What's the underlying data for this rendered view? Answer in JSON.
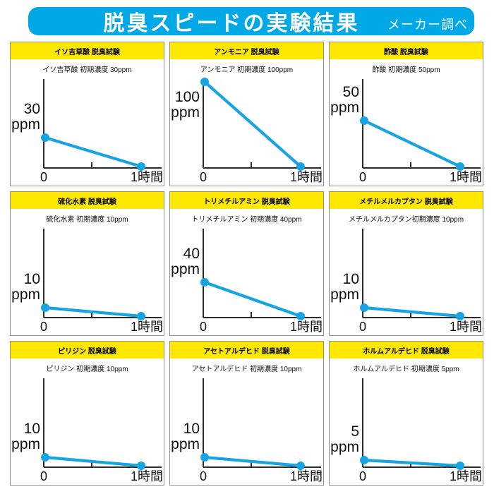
{
  "header": {
    "title": "脱臭スピードの実験結果",
    "note": "メーカー調べ"
  },
  "colors": {
    "header_bg": "#00a9e6",
    "panel_title_bg": "#ffe800",
    "line": "#17a4e3",
    "axis": "#2b2b2b",
    "text": "#111111",
    "panel_border": "#8f8f8f"
  },
  "x_axis": {
    "start_label": "0",
    "end_label": "1時間"
  },
  "chart_data": [
    {
      "type": "line",
      "title": "イソ吉草酸 脱臭試験",
      "subtitle": "イソ吉草酸 初期濃度 30ppm",
      "substance": "イソ吉草酸",
      "initial_ppm": 30,
      "ylabel_value": "30",
      "ylabel_unit": "ppm",
      "x_hours": [
        0,
        1
      ],
      "x_tick_labels": [
        "0",
        "1時間"
      ],
      "values_ppm": [
        30,
        0
      ],
      "start_frac": 0.34
    },
    {
      "type": "line",
      "title": "アンモニア 脱臭試験",
      "subtitle": "アンモニア 初期濃度 100ppm",
      "substance": "アンモニア",
      "initial_ppm": 100,
      "ylabel_value": "100",
      "ylabel_unit": "ppm",
      "x_hours": [
        0,
        1
      ],
      "x_tick_labels": [
        "0",
        "1時間"
      ],
      "values_ppm": [
        100,
        0
      ],
      "start_frac": 0.97
    },
    {
      "type": "line",
      "title": "酢酸 脱臭試験",
      "subtitle": "酢酸 初期濃度 50ppm",
      "substance": "酢酸",
      "initial_ppm": 50,
      "ylabel_value": "50",
      "ylabel_unit": "ppm",
      "x_hours": [
        0,
        1
      ],
      "x_tick_labels": [
        "0",
        "1時間"
      ],
      "values_ppm": [
        50,
        0
      ],
      "start_frac": 0.53
    },
    {
      "type": "line",
      "title": "硫化水素 脱臭試験",
      "subtitle": "硫化水素 初期濃度 10ppm",
      "substance": "硫化水素",
      "initial_ppm": 10,
      "ylabel_value": "10",
      "ylabel_unit": "ppm",
      "x_hours": [
        0,
        1
      ],
      "x_tick_labels": [
        "0",
        "1時間"
      ],
      "values_ppm": [
        10,
        0
      ],
      "start_frac": 0.11
    },
    {
      "type": "line",
      "title": "トリメチルアミン 脱臭試験",
      "subtitle": "トリメチルアミン 初期濃度 40ppm",
      "substance": "トリメチルアミン",
      "initial_ppm": 40,
      "ylabel_value": "40",
      "ylabel_unit": "ppm",
      "x_hours": [
        0,
        1
      ],
      "x_tick_labels": [
        "0",
        "1時間"
      ],
      "values_ppm": [
        40,
        0
      ],
      "start_frac": 0.4
    },
    {
      "type": "line",
      "title": "メチルメルカプタン 脱臭試験",
      "subtitle": "メチルメルカプタン初期濃度 10ppm",
      "substance": "メチルメルカプタン",
      "initial_ppm": 10,
      "ylabel_value": "10",
      "ylabel_unit": "ppm",
      "x_hours": [
        0,
        1
      ],
      "x_tick_labels": [
        "0",
        "1時間"
      ],
      "values_ppm": [
        10,
        0
      ],
      "start_frac": 0.11
    },
    {
      "type": "line",
      "title": "ピリジン 脱臭試験",
      "subtitle": "ピリジン 初期濃度 10ppm",
      "substance": "ピリジン",
      "initial_ppm": 10,
      "ylabel_value": "10",
      "ylabel_unit": "ppm",
      "x_hours": [
        0,
        1
      ],
      "x_tick_labels": [
        "0",
        "1時間"
      ],
      "values_ppm": [
        10,
        0
      ],
      "start_frac": 0.11
    },
    {
      "type": "line",
      "title": "アセトアルデヒド 脱臭試験",
      "subtitle": "アセトアルデヒド 初期濃度 10ppm",
      "substance": "アセトアルデヒド",
      "initial_ppm": 10,
      "ylabel_value": "10",
      "ylabel_unit": "ppm",
      "x_hours": [
        0,
        1
      ],
      "x_tick_labels": [
        "0",
        "1時間"
      ],
      "values_ppm": [
        10,
        0
      ],
      "start_frac": 0.11
    },
    {
      "type": "line",
      "title": "ホルムアルデヒド 脱臭試験",
      "subtitle": "ホルムアルデヒド 初期濃度 5ppm",
      "substance": "ホルムアルデヒド",
      "initial_ppm": 5,
      "ylabel_value": "5",
      "ylabel_unit": "ppm",
      "x_hours": [
        0,
        1
      ],
      "x_tick_labels": [
        "0",
        "1時間"
      ],
      "values_ppm": [
        5,
        0
      ],
      "start_frac": 0.08
    }
  ],
  "layout_hints": {
    "shared_axis_max_ppm": 100,
    "grid": "3x3",
    "gridlines": false
  }
}
